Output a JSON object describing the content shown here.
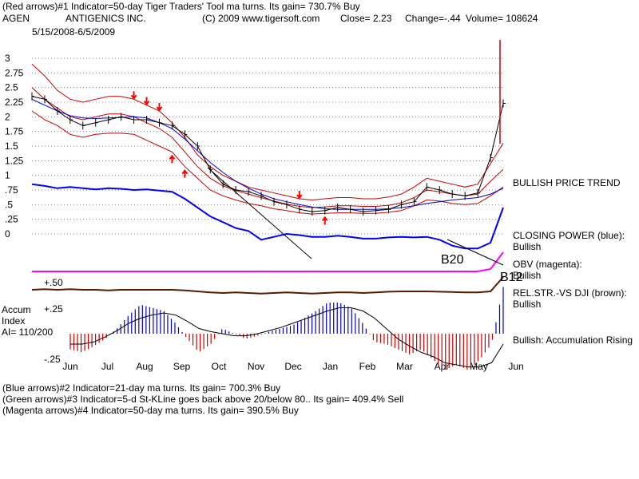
{
  "header": {
    "line1": "(Red arrows)#1 Indicator=50-day Tiger Traders' Tool ma turns. Its gain= 730.7% Buy",
    "symbol": "AGEN",
    "company": "ANTIGENICS INC.",
    "copyright": "(C) 2009 www.tigersoft.com",
    "close": "Close=  2.23",
    "change": "Change=-.44",
    "volume": "Volume= 108624",
    "dates": "5/15/2008-6/5/2009"
  },
  "annotations": {
    "trend": "BULLISH PRICE TREND",
    "closing_power_1": "CLOSING POWER (blue):",
    "closing_power_2": "Bullish",
    "obv_1": "OBV (magenta):",
    "obv_2": "Bullish",
    "relstr_1": "REL.STR.-VS DJI (brown):",
    "relstr_2": "Bullish",
    "accum_1": "Bullish: Accumulation Rising",
    "b20": "B20",
    "b12": "B12"
  },
  "accum": {
    "title1": "Accum",
    "title2": "Index",
    "ai": "AI= 110/200",
    "plus50": "+.50",
    "plus25": "+.25",
    "minus25": "-.25"
  },
  "footer": {
    "line1": "(Blue arrows)#2 Indicator=21-day ma turns. Its gain= 700.3% Buy",
    "line2": "(Green arrows)#3 Indicator=5-d St-KLine goes back above 20/below 80.. Its gain= 409.4% Sell",
    "line3": "(Magenta arrows)#4 Indicator=50-day ma turns. Its gain= 390.5% Buy"
  },
  "colors": {
    "price": "#000000",
    "bands": "#cc0000",
    "ma_blue": "#0000cc",
    "closing_power": "#0000ff",
    "obv": "#ff00ff",
    "relstr": "#5a1a00",
    "accum_pos": "#0000cc",
    "accum_neg": "#cc0000",
    "arrow": "#ff0000",
    "grid": "#888888"
  },
  "chart_data": {
    "type": "line",
    "yticks": [
      "3",
      "2.75",
      "2.5",
      "2.25",
      "2",
      "1.75",
      "1.5",
      "1.25",
      "1",
      ".75",
      ".5",
      ".25",
      "0"
    ],
    "ylim": [
      0,
      3
    ],
    "months": [
      "Jun",
      "Jul",
      "Aug",
      "Sep",
      "Oct",
      "Nov",
      "Dec",
      "Jan",
      "Feb",
      "Mar",
      "Apr",
      "May",
      "Jun"
    ],
    "price": [
      2.35,
      2.3,
      2.1,
      1.95,
      1.85,
      1.9,
      1.95,
      2.0,
      1.95,
      1.95,
      1.9,
      1.85,
      1.7,
      1.5,
      1.1,
      0.85,
      0.75,
      0.72,
      0.65,
      0.55,
      0.5,
      0.42,
      0.38,
      0.4,
      0.45,
      0.42,
      0.38,
      0.4,
      0.42,
      0.5,
      0.55,
      0.8,
      0.75,
      0.68,
      0.65,
      0.7,
      1.3,
      2.23
    ],
    "upper_band": [
      2.9,
      2.7,
      2.45,
      2.3,
      2.25,
      2.3,
      2.35,
      2.35,
      2.3,
      2.2,
      2.1,
      1.9,
      1.65,
      1.35,
      1.15,
      1.0,
      0.9,
      0.8,
      0.75,
      0.7,
      0.65,
      0.6,
      0.58,
      0.6,
      0.62,
      0.62,
      0.6,
      0.6,
      0.63,
      0.68,
      0.8,
      0.95,
      0.9,
      0.85,
      0.8,
      0.85,
      1.2,
      1.55
    ],
    "middle_band": [
      2.5,
      2.3,
      2.15,
      2.0,
      1.95,
      2.0,
      2.05,
      2.05,
      2.0,
      1.9,
      1.8,
      1.65,
      1.4,
      1.15,
      0.95,
      0.82,
      0.74,
      0.68,
      0.62,
      0.56,
      0.51,
      0.47,
      0.45,
      0.46,
      0.48,
      0.48,
      0.47,
      0.47,
      0.49,
      0.53,
      0.62,
      0.75,
      0.72,
      0.68,
      0.65,
      0.68,
      0.9,
      1.1
    ],
    "lower_band": [
      2.1,
      1.95,
      1.85,
      1.7,
      1.65,
      1.7,
      1.72,
      1.72,
      1.7,
      1.6,
      1.5,
      1.4,
      1.15,
      0.95,
      0.75,
      0.65,
      0.58,
      0.52,
      0.48,
      0.43,
      0.4,
      0.36,
      0.34,
      0.35,
      0.36,
      0.36,
      0.35,
      0.35,
      0.37,
      0.4,
      0.48,
      0.58,
      0.56,
      0.52,
      0.5,
      0.52,
      0.65,
      0.8
    ],
    "ma_blue": [
      2.3,
      2.2,
      2.1,
      2.02,
      1.98,
      1.97,
      1.98,
      1.99,
      2.0,
      1.98,
      1.9,
      1.8,
      1.62,
      1.42,
      1.22,
      1.05,
      0.9,
      0.78,
      0.68,
      0.6,
      0.55,
      0.5,
      0.46,
      0.43,
      0.42,
      0.42,
      0.42,
      0.42,
      0.43,
      0.45,
      0.48,
      0.52,
      0.55,
      0.58,
      0.6,
      0.62,
      0.68,
      0.78
    ],
    "closing_power": [
      0.85,
      0.82,
      0.78,
      0.8,
      0.78,
      0.76,
      0.78,
      0.77,
      0.75,
      0.76,
      0.74,
      0.72,
      0.6,
      0.45,
      0.3,
      0.2,
      0.1,
      0.05,
      -0.1,
      -0.05,
      0.0,
      -0.02,
      -0.05,
      -0.05,
      -0.03,
      -0.05,
      -0.08,
      -0.08,
      -0.06,
      -0.05,
      -0.06,
      -0.05,
      -0.1,
      -0.2,
      -0.25,
      -0.25,
      -0.15,
      0.45
    ],
    "obv": [
      0.1,
      0.1,
      0.1,
      0.1,
      0.1,
      0.1,
      0.1,
      0.1,
      0.1,
      0.1,
      0.1,
      0.1,
      0.1,
      0.1,
      0.1,
      0.1,
      0.1,
      0.1,
      0.1,
      0.1,
      0.1,
      0.1,
      0.1,
      0.1,
      0.1,
      0.1,
      0.1,
      0.1,
      0.1,
      0.1,
      0.1,
      0.1,
      0.1,
      0.1,
      0.1,
      0.1,
      0.2,
      0.9
    ],
    "relstr": [
      0.5,
      0.52,
      0.5,
      0.52,
      0.5,
      0.5,
      0.48,
      0.5,
      0.5,
      0.5,
      0.5,
      0.5,
      0.48,
      0.45,
      0.42,
      0.4,
      0.42,
      0.4,
      0.38,
      0.4,
      0.42,
      0.4,
      0.38,
      0.4,
      0.42,
      0.42,
      0.4,
      0.42,
      0.44,
      0.45,
      0.45,
      0.45,
      0.44,
      0.43,
      0.42,
      0.42,
      0.45,
      0.9
    ],
    "accum": [
      -0.15,
      -0.18,
      -0.12,
      -0.05,
      0.05,
      0.18,
      0.28,
      0.25,
      0.22,
      0.1,
      -0.05,
      -0.18,
      -0.1,
      0.05,
      0.0,
      -0.05,
      -0.02,
      0.02,
      0.05,
      0.08,
      0.15,
      0.22,
      0.3,
      0.3,
      0.25,
      0.1,
      -0.08,
      -0.1,
      -0.15,
      -0.2,
      -0.15,
      -0.25,
      -0.35,
      -0.3,
      -0.35,
      -0.25,
      -0.1,
      0.45
    ],
    "accum_ma": [
      -0.1,
      -0.1,
      -0.08,
      -0.03,
      0.03,
      0.1,
      0.15,
      0.18,
      0.2,
      0.18,
      0.12,
      0.05,
      0.02,
      0.0,
      -0.02,
      -0.02,
      0.0,
      0.03,
      0.06,
      0.1,
      0.14,
      0.18,
      0.22,
      0.25,
      0.25,
      0.22,
      0.15,
      0.05,
      -0.05,
      -0.12,
      -0.18,
      -0.22,
      -0.28,
      -0.3,
      -0.32,
      -0.32,
      -0.28,
      -0.1
    ],
    "red_arrow_down_idx": [
      8,
      9,
      10,
      21
    ],
    "red_arrow_up_idx": [
      11,
      12,
      23
    ]
  }
}
